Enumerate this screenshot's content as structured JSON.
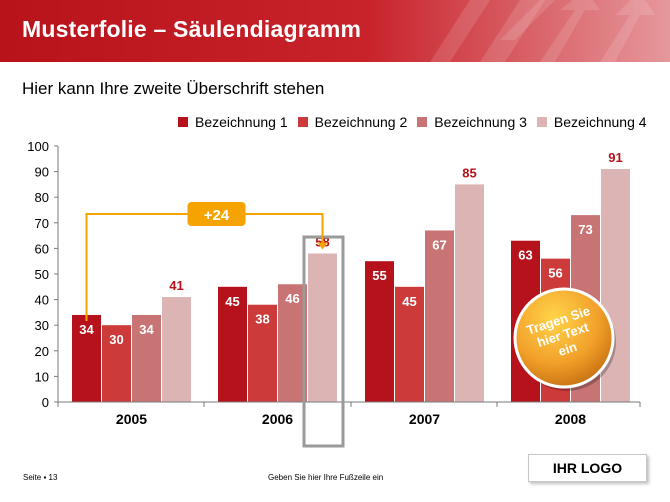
{
  "slide": {
    "title": "Musterfolie – Säulendiagramm",
    "subtitle": "Hier kann Ihre zweite Überschrift stehen"
  },
  "colors": {
    "banner": "#c0161e",
    "series": [
      "#b5121b",
      "#cc3a3a",
      "#c87474",
      "#dcb4b4"
    ],
    "callout": "#f5a300",
    "highlight_box": "#9a9a9a"
  },
  "chart_data": {
    "type": "bar",
    "categories": [
      "2005",
      "2006",
      "2007",
      "2008"
    ],
    "series": [
      {
        "name": "Bezeichnung 1",
        "values": [
          34,
          45,
          55,
          63
        ]
      },
      {
        "name": "Bezeichnung 2",
        "values": [
          30,
          38,
          45,
          56
        ]
      },
      {
        "name": "Bezeichnung 3",
        "values": [
          34,
          46,
          67,
          73
        ]
      },
      {
        "name": "Bezeichnung 4",
        "values": [
          41,
          58,
          85,
          91
        ]
      }
    ],
    "ylim": [
      0,
      100
    ],
    "yticks": [
      0,
      10,
      20,
      30,
      40,
      50,
      60,
      70,
      80,
      90,
      100
    ],
    "grid": false,
    "legend": "top-right",
    "annotation": {
      "label": "+24",
      "from": {
        "category": "2005",
        "series": "Bezeichnung 1"
      },
      "to": {
        "category": "2006",
        "series": "Bezeichnung 4"
      }
    },
    "badge": "Tragen Sie hier Text ein"
  },
  "footer": {
    "page": "Seite ▪ 13",
    "text": "Geben Sie hier Ihre Fußzeile ein",
    "logo": "IHR LOGO"
  }
}
